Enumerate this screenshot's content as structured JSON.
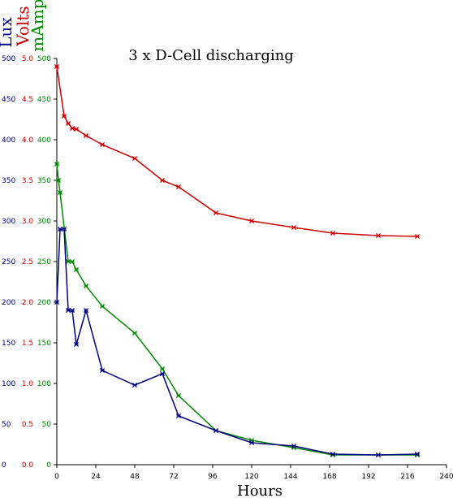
{
  "chart_data": {
    "type": "line",
    "title": "3 x D-Cell discharging",
    "xlabel": "Hours",
    "xlim": [
      0,
      240
    ],
    "x_ticks": [
      "0",
      "24",
      "48",
      "72",
      "96",
      "120",
      "144",
      "168",
      "192",
      "216",
      "240"
    ],
    "y_axes": [
      {
        "label": "Lux",
        "color": "#000080",
        "ylim": [
          0,
          500
        ],
        "ticks": [
          "0",
          "50",
          "100",
          "150",
          "200",
          "250",
          "300",
          "350",
          "400",
          "450",
          "500"
        ]
      },
      {
        "label": "Volts",
        "color": "#cc0000",
        "ylim": [
          0,
          5
        ],
        "ticks": [
          "0.0",
          "0.5",
          "1.0",
          "1.5",
          "2.0",
          "2.5",
          "3.0",
          "3.5",
          "4.0",
          "4.5",
          "5.0"
        ]
      },
      {
        "label": "mAmps",
        "color": "#008800",
        "ylim": [
          0,
          500
        ],
        "ticks": [
          "0",
          "50",
          "100",
          "150",
          "200",
          "250",
          "300",
          "350",
          "400",
          "450",
          "500"
        ]
      }
    ],
    "series": [
      {
        "name": "Volts",
        "axis": 1,
        "color": "#cc0000",
        "x": [
          0,
          4.5,
          7,
          9.5,
          12,
          18,
          28,
          48,
          65,
          75,
          98,
          120,
          146,
          170,
          198,
          222
        ],
        "y": [
          4.9,
          4.29,
          4.2,
          4.14,
          4.13,
          4.05,
          3.94,
          3.77,
          3.5,
          3.42,
          3.1,
          3.0,
          2.92,
          2.85,
          2.82,
          2.81
        ]
      },
      {
        "name": "mAmps",
        "axis": 2,
        "color": "#008800",
        "x": [
          0,
          1,
          2,
          7,
          9.5,
          12,
          18,
          28,
          48,
          65,
          75,
          98,
          120,
          146,
          170,
          198,
          222
        ],
        "y": [
          370,
          350,
          335,
          250,
          250,
          240,
          220,
          195,
          162,
          118,
          85,
          42,
          30,
          21,
          12,
          12,
          12
        ]
      },
      {
        "name": "Lux",
        "axis": 0,
        "color": "#000080",
        "x": [
          0,
          2,
          4.5,
          7,
          9.5,
          12,
          18,
          28,
          48,
          65,
          75,
          98,
          120,
          146,
          170,
          198,
          222
        ],
        "y": [
          200,
          290,
          290,
          190,
          190,
          148,
          190,
          116,
          98,
          112,
          60,
          42,
          27,
          23,
          13,
          12,
          13
        ]
      }
    ]
  }
}
